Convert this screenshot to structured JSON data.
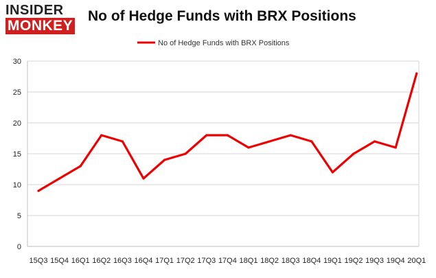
{
  "logo": {
    "line1": "INSIDER",
    "line2": "MONKEY"
  },
  "chart_data": {
    "type": "line",
    "title": "No of Hedge Funds with BRX Positions",
    "xlabel": "",
    "ylabel": "",
    "categories": [
      "15Q3",
      "15Q4",
      "16Q1",
      "16Q2",
      "16Q3",
      "16Q4",
      "17Q1",
      "17Q2",
      "17Q3",
      "17Q4",
      "18Q1",
      "18Q2",
      "18Q3",
      "18Q4",
      "19Q1",
      "19Q2",
      "19Q3",
      "19Q4",
      "20Q1"
    ],
    "series": [
      {
        "name": "No of Hedge Funds with BRX Positions",
        "values": [
          9,
          11,
          13,
          18,
          17,
          11,
          14,
          15,
          18,
          18,
          16,
          17,
          18,
          17,
          12,
          15,
          17,
          16,
          28
        ],
        "color": "#ee0000"
      }
    ],
    "ylim": [
      0,
      30
    ],
    "yticks": [
      0,
      5,
      10,
      15,
      20,
      25,
      30
    ],
    "grid": true,
    "gridColor": "#d4d4d4",
    "legend": "top-center"
  }
}
